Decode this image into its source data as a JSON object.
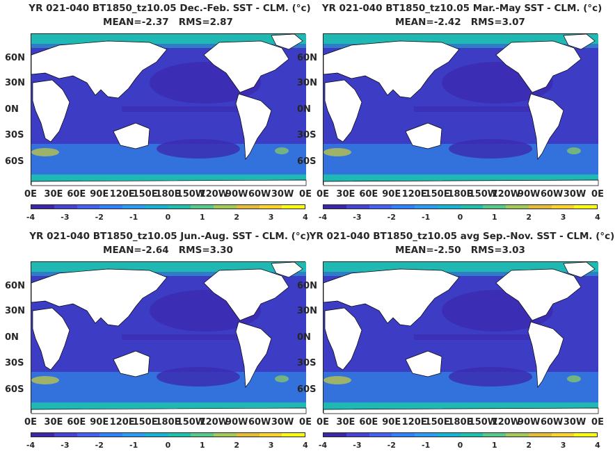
{
  "panels": [
    {
      "title_line1": "YR 021-040 BT1850_tz10.05  Dec.-Feb. SST - CLM. (°c)",
      "mean": "MEAN=-2.37",
      "rms": "RMS=2.87"
    },
    {
      "title_line1": "YR 021-040 BT1850_tz10.05 Mar.-May SST - CLM. (°c)",
      "mean": "MEAN=-2.42",
      "rms": "RMS=3.07"
    },
    {
      "title_line1": "YR 021-040 BT1850_tz10.05 Jun.-Aug. SST - CLM. (°c)",
      "mean": "MEAN=-2.64",
      "rms": "RMS=3.30"
    },
    {
      "title_line1": "YR 021-040 BT1850_tz10.05 avg Sep.-Nov. SST - CLM. (°c)",
      "mean": "MEAN=-2.50",
      "rms": "RMS=3.03"
    }
  ],
  "lat_labels": [
    "60N",
    "30N",
    "0N",
    "30S",
    "60S"
  ],
  "lon_labels": [
    "0E",
    "30E",
    "60E",
    "90E",
    "120E",
    "150E",
    "180E",
    "150W",
    "120W",
    "90W",
    "60W",
    "30W",
    "0E"
  ],
  "colorbar": {
    "ticks": [
      "-4",
      "-3",
      "-2",
      "-1",
      "0",
      "1",
      "2",
      "3",
      "4"
    ],
    "colors": [
      "#3e26a8",
      "#4743d4",
      "#4461f0",
      "#2f82fa",
      "#2b9cf2",
      "#15b3d6",
      "#1fc0b0",
      "#59c98b",
      "#a5c85a",
      "#e5bb3a",
      "#fcd22f",
      "#f9fb15"
    ]
  },
  "colors": {
    "ocean_base": "#3d3cc4",
    "ocean_deep": "#3b2bb0",
    "ocean_mid": "#4256e0",
    "arctic": "#1fb8b3",
    "southern": "#2b9cf2",
    "land": "#ffffff"
  }
}
